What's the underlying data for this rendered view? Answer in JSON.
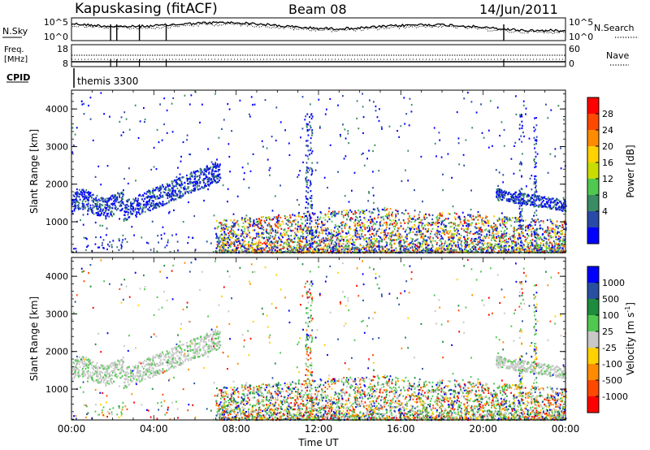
{
  "header": {
    "station": "Kapuskasing (fitACF)",
    "beam": "Beam 08",
    "date": "14/Jun/2011",
    "cpid_label": "CPID",
    "cpid_value": "themis 3300"
  },
  "chart_data": [
    {
      "type": "line",
      "id": "noise",
      "left_label": "N.Sky",
      "right_label": "N.Search",
      "left_ticks": [
        "10^5",
        "10^0"
      ],
      "right_ticks": [
        "10^5",
        "10^0"
      ],
      "series": [
        {
          "name": "N.Sky",
          "style": "solid"
        },
        {
          "name": "N.Search",
          "style": "dotted"
        }
      ],
      "description_values": "noise level near 10^4–10^5 throughout the day with brief dropouts near 02:00, 02:30, 03:10, 04:30 and 21:00"
    },
    {
      "type": "line",
      "id": "freq_nave",
      "left_label_lines": [
        "Freq.",
        "[MHz]"
      ],
      "right_label": "Nave",
      "left_ticks": [
        "18",
        "8"
      ],
      "right_ticks": [
        "60",
        "0"
      ],
      "series": [
        {
          "name": "Freq.",
          "style": "solid"
        },
        {
          "name": "Nave",
          "style": "dotted"
        }
      ]
    },
    {
      "type": "heatmap",
      "id": "power",
      "ylabel": "Slant Range [km]",
      "ylim": [
        180,
        4500
      ],
      "yticks": [
        1000,
        2000,
        3000,
        4000
      ],
      "xlim_hours": [
        0,
        24
      ],
      "colorbar_label": "Power [dB]",
      "colorbar_ticks": [
        "28",
        "24",
        "20",
        "16",
        "12",
        "8",
        "4"
      ],
      "colorbar_colors": [
        "#ff0000",
        "#ff4800",
        "#ff8c00",
        "#ffd200",
        "#c8dc00",
        "#50c850",
        "#3a8c64",
        "#2a4aa8",
        "#0000ff"
      ]
    },
    {
      "type": "heatmap",
      "id": "velocity",
      "ylabel": "Slant Range [km]",
      "ylim": [
        180,
        4500
      ],
      "yticks": [
        1000,
        2000,
        3000,
        4000
      ],
      "xlim_hours": [
        0,
        24
      ],
      "xticks": [
        "00:00",
        "04:00",
        "08:00",
        "12:00",
        "16:00",
        "20:00",
        "00:00"
      ],
      "xlabel": "Time UT",
      "colorbar_label": "Velocity [m s",
      "colorbar_label_sup": "-1",
      "colorbar_label_end": "]",
      "colorbar_ticks": [
        "1000",
        "500",
        "100",
        "25",
        "-25",
        "-100",
        "-500",
        "-1000"
      ],
      "colorbar_colors": [
        "#0000ff",
        "#2850a0",
        "#1e8c3c",
        "#50c850",
        "#c8c8c8",
        "#ffd200",
        "#ff8c00",
        "#ff4800",
        "#ff0000"
      ]
    }
  ]
}
